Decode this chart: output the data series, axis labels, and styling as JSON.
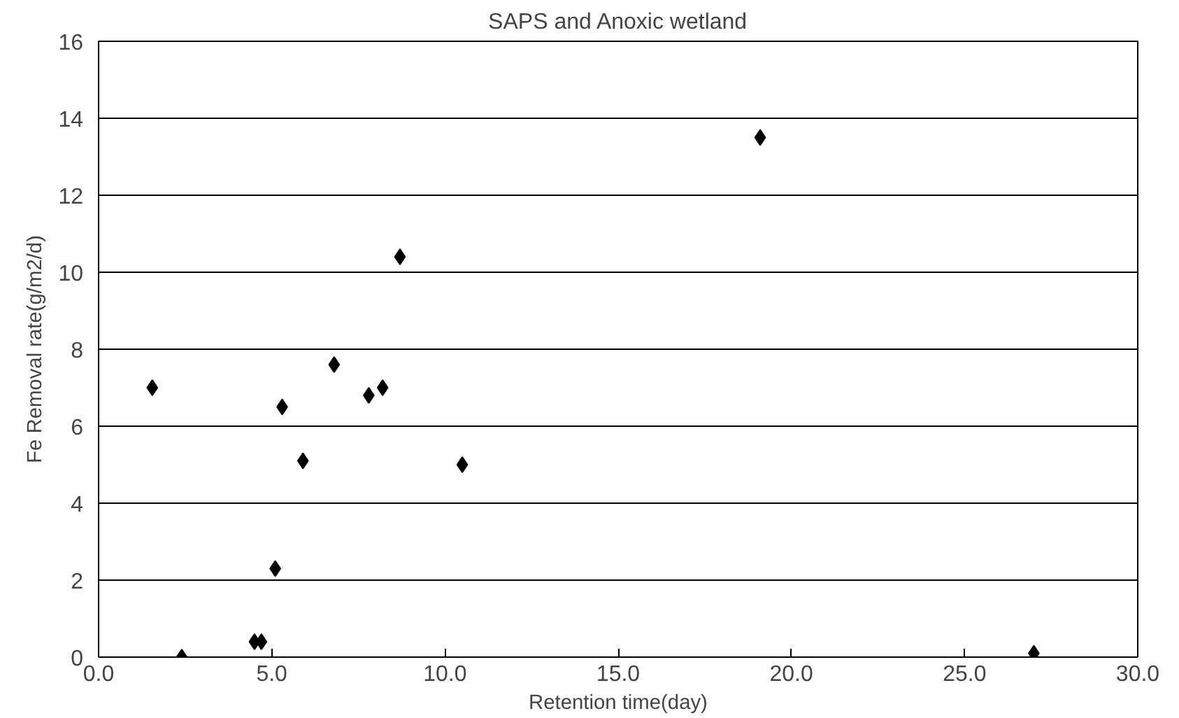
{
  "chart_data": {
    "type": "scatter",
    "title": "SAPS and Anoxic wetland",
    "xlabel": "Retention time(day)",
    "ylabel": "Fe Removal rate(g/m2/d)",
    "x": [
      1.55,
      2.4,
      4.5,
      4.7,
      5.1,
      5.3,
      5.9,
      6.8,
      7.8,
      8.2,
      8.7,
      10.5,
      19.1,
      27.0
    ],
    "series": [
      {
        "color": "#000000",
        "values": [
          7.0,
          0.0,
          0.4,
          0.4,
          2.3,
          6.5,
          5.1,
          7.6,
          6.8,
          7.0,
          10.4,
          5.0,
          13.5,
          0.1
        ]
      }
    ],
    "xlim": [
      0,
      30
    ],
    "ylim": [
      0,
      16
    ],
    "xticks": [
      {
        "value": 0,
        "label": "0.0"
      },
      {
        "value": 5,
        "label": "5.0"
      },
      {
        "value": 10,
        "label": "10.0"
      },
      {
        "value": 15,
        "label": "15.0"
      },
      {
        "value": 20,
        "label": "20.0"
      },
      {
        "value": 25,
        "label": "25.0"
      },
      {
        "value": 30,
        "label": "30.0"
      }
    ],
    "yticks": [
      0,
      2,
      4,
      6,
      8,
      10,
      12,
      14,
      16
    ],
    "grid": "y",
    "marker": "diamond"
  }
}
